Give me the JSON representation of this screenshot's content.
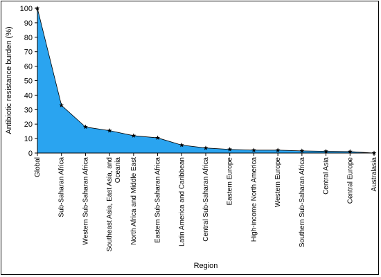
{
  "chart_data": {
    "type": "area",
    "title": "",
    "xlabel": "Region",
    "ylabel": "Antibiotic resistance burden (%)",
    "ylim": [
      0,
      100
    ],
    "yticks": [
      0,
      10,
      20,
      30,
      40,
      50,
      60,
      70,
      80,
      90,
      100
    ],
    "grid": false,
    "categories": [
      "Global",
      "Sub-Saharan Africa",
      "Western Sub-Saharan Africa",
      "Southeast Asia, East Asia, and Oceania",
      "North Africa and Middle East",
      "Eastern Sub-Saharan Africa",
      "Latin America and Caribbean",
      "Central Sub-Saharan Africa",
      "Eastern Europe",
      "High-income North America",
      "Western Europe",
      "Southern Sub-Saharan Africa",
      "Central Asia",
      "Central Europe",
      "Australasia"
    ],
    "tick_label_lines": [
      [
        "Global"
      ],
      [
        "Sub-Saharan Africa"
      ],
      [
        "Western Sub-Saharan Africa"
      ],
      [
        "Southeast Asia, East Asia, and",
        "Oceania"
      ],
      [
        "North Africa and Middle East"
      ],
      [
        "Eastern Sub-Saharan Africa"
      ],
      [
        "Latin America and Caribbean"
      ],
      [
        "Central Sub-Saharan Africa"
      ],
      [
        "Eastern Europe"
      ],
      [
        "High-income North America"
      ],
      [
        "Western Europe"
      ],
      [
        "Southern Sub-Saharan Africa"
      ],
      [
        "Central Asia"
      ],
      [
        "Central Europe"
      ],
      [
        "Australasia"
      ]
    ],
    "values": [
      100,
      33,
      18,
      15.5,
      12,
      10.5,
      5.5,
      3.5,
      2.5,
      2,
      2,
      1.5,
      1.2,
      1,
      0
    ],
    "fill_color": "#2aa4f0",
    "line_color": "#000000",
    "marker": "star"
  }
}
